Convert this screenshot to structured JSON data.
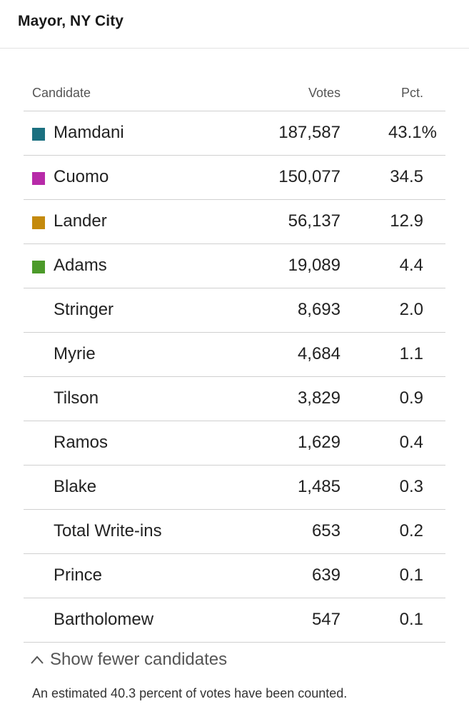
{
  "header": {
    "title": "Mayor, NY City"
  },
  "table": {
    "columns": {
      "candidate": "Candidate",
      "votes": "Votes",
      "pct": "Pct."
    },
    "rows": [
      {
        "name": "Mamdani",
        "votes": "187,587",
        "pct": "43.1%",
        "color": "#1b7080"
      },
      {
        "name": "Cuomo",
        "votes": "150,077",
        "pct": "34.5",
        "color": "#b72aa8"
      },
      {
        "name": "Lander",
        "votes": "56,137",
        "pct": "12.9",
        "color": "#c48a0d"
      },
      {
        "name": "Adams",
        "votes": "19,089",
        "pct": "4.4",
        "color": "#4c9a2a"
      },
      {
        "name": "Stringer",
        "votes": "8,693",
        "pct": "2.0",
        "color": ""
      },
      {
        "name": "Myrie",
        "votes": "4,684",
        "pct": "1.1",
        "color": ""
      },
      {
        "name": "Tilson",
        "votes": "3,829",
        "pct": "0.9",
        "color": ""
      },
      {
        "name": "Ramos",
        "votes": "1,629",
        "pct": "0.4",
        "color": ""
      },
      {
        "name": "Blake",
        "votes": "1,485",
        "pct": "0.3",
        "color": ""
      },
      {
        "name": "Total Write-ins",
        "votes": "653",
        "pct": "0.2",
        "color": ""
      },
      {
        "name": "Prince",
        "votes": "639",
        "pct": "0.1",
        "color": ""
      },
      {
        "name": "Bartholomew",
        "votes": "547",
        "pct": "0.1",
        "color": ""
      }
    ]
  },
  "toggle": {
    "label": "Show fewer candidates",
    "icon": "chevron-up-icon"
  },
  "footnote": "An estimated 40.3 percent of votes have been counted."
}
